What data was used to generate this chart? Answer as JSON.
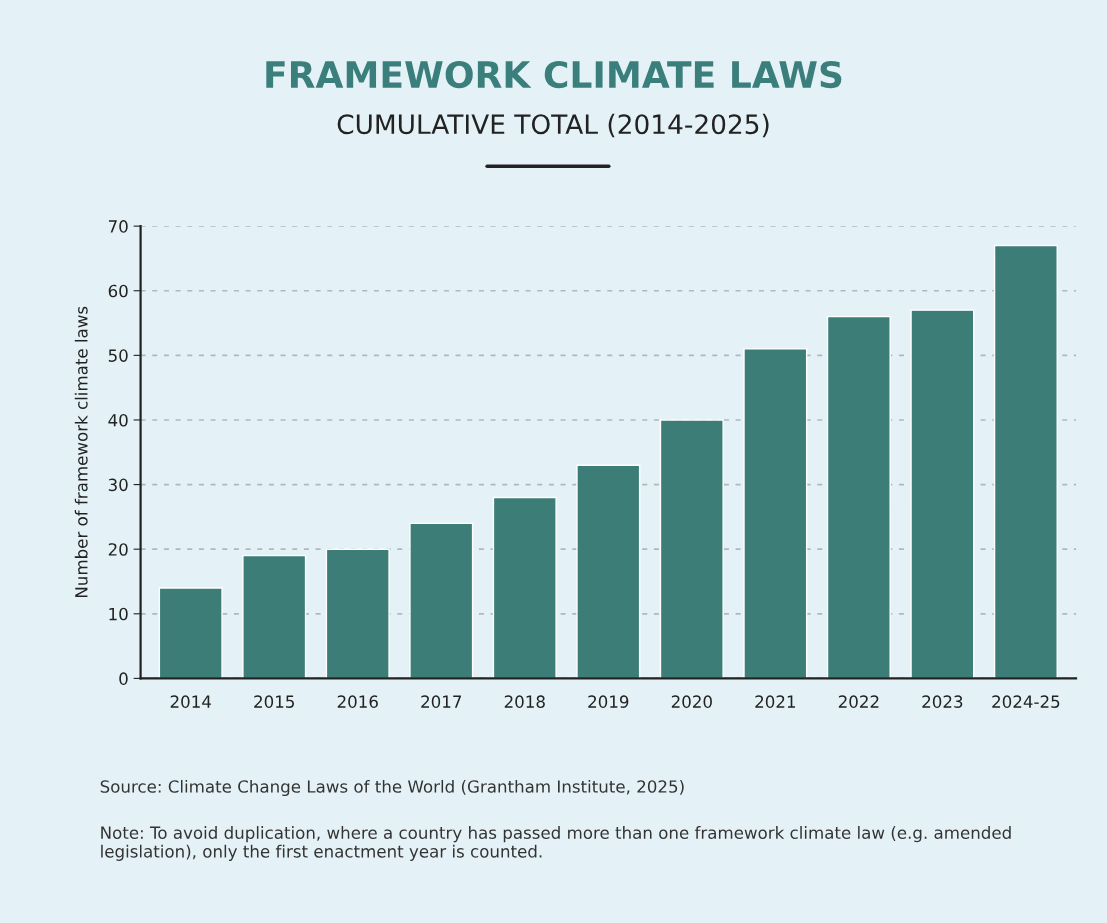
{
  "chart_data": {
    "type": "bar",
    "title": "FRAMEWORK CLIMATE LAWS",
    "subtitle": "CUMULATIVE TOTAL (2014-2025)",
    "ylabel": "Number of framework climate laws",
    "categories": [
      "2014",
      "2015",
      "2016",
      "2017",
      "2018",
      "2019",
      "2020",
      "2021",
      "2022",
      "2023",
      "2024-25"
    ],
    "values": [
      14,
      19,
      20,
      24,
      28,
      33,
      40,
      51,
      56,
      57,
      67
    ],
    "color": "#3d7d78",
    "ylim": [
      0,
      70
    ],
    "yticks": [
      0,
      10,
      20,
      30,
      40,
      50,
      60,
      70
    ],
    "grid": "y",
    "annotations": [
      "Source: Climate Change Laws of the World (Grantham Institute, 2025)",
      "Note: To avoid duplication, where a country has passed more than one framework climate law (e.g. amended legislation), only the first enactment year is counted."
    ]
  }
}
